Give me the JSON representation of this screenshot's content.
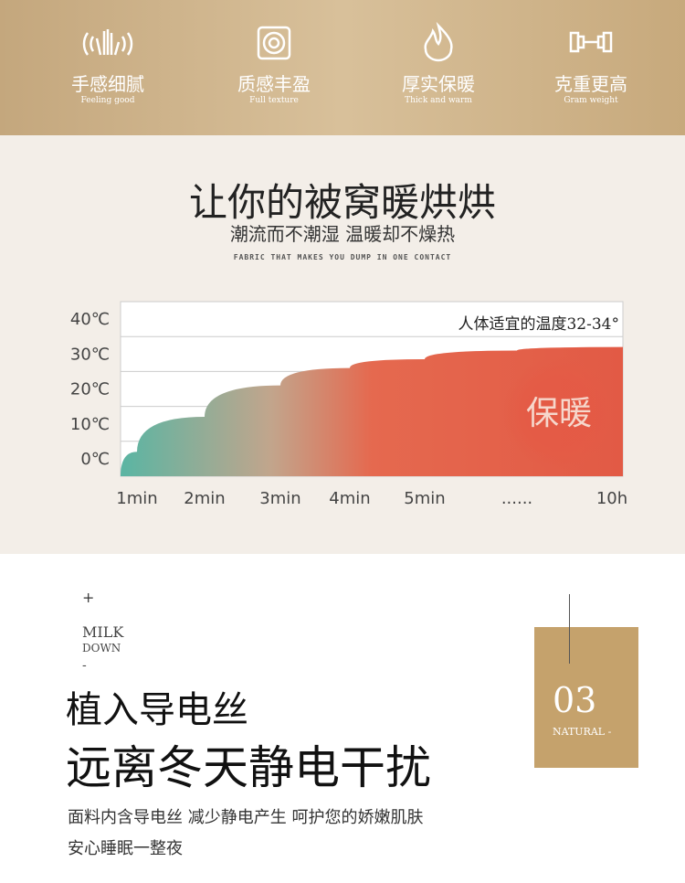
{
  "features": [
    {
      "title": "手感细腻",
      "subtitle": "Feeling good"
    },
    {
      "title": "质感丰盈",
      "subtitle": "Full texture"
    },
    {
      "title": "厚实保暖",
      "subtitle": "Thick and warm"
    },
    {
      "title": "克重更高",
      "subtitle": "Gram weight"
    }
  ],
  "section1": {
    "title": "让你的被窝暖烘烘",
    "subtitle": "潮流而不潮湿 温暖却不燥热",
    "tagline": "FABRIC THAT MAKES YOU DUMP IN ONE CONTACT"
  },
  "chart_data": {
    "type": "area",
    "annotation": "人体适宜的温度32-34°",
    "badge": "保暖",
    "categories": [
      "1min",
      "2min",
      "3min",
      "4min",
      "5min",
      "......",
      "10h"
    ],
    "values": [
      7,
      17,
      26,
      31,
      33.5,
      36,
      37
    ],
    "ylim": [
      0,
      50
    ],
    "yticks": [
      {
        "value": 0,
        "label": "0℃"
      },
      {
        "value": 10,
        "label": "10℃"
      },
      {
        "value": 20,
        "label": "20℃"
      },
      {
        "value": 30,
        "label": "30℃"
      },
      {
        "value": 40,
        "label": "40℃"
      }
    ],
    "grid": true
  },
  "section2": {
    "plus": "+",
    "tag1": "MILK",
    "tag2": "DOWN",
    "dash": "-",
    "heading1": "植入导电丝",
    "heading2": "远离冬天静电干扰",
    "body1": "面料内含导电丝 减少静电产生 呵护您的娇嫩肌肤",
    "body2": "安心睡眠一整夜",
    "badge_number": "03",
    "badge_label": "NATURAL -"
  }
}
